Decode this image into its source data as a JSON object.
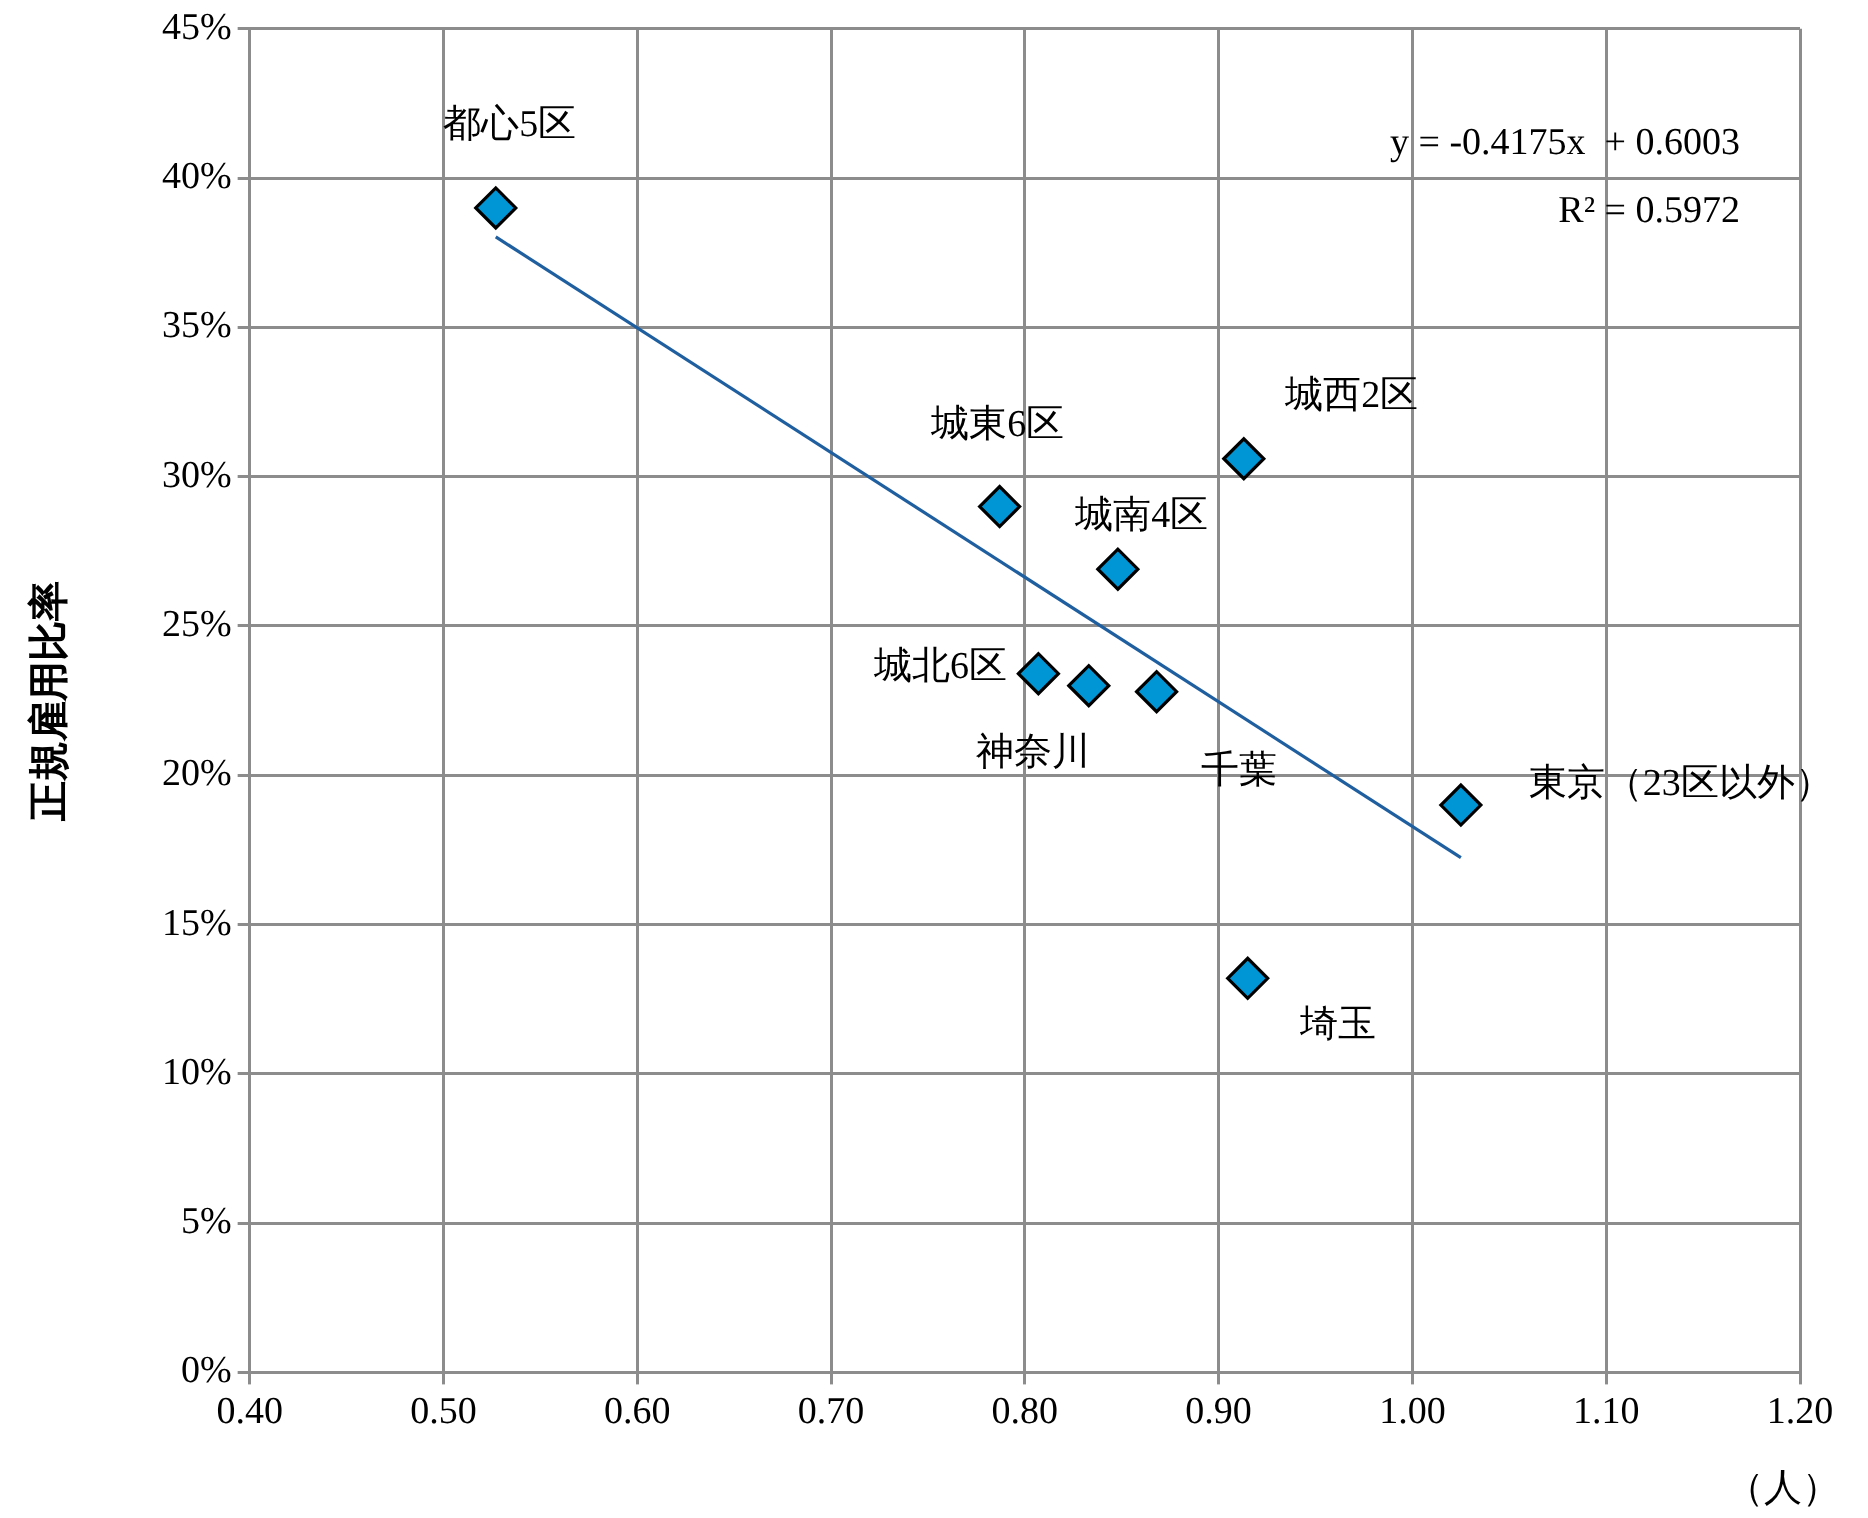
{
  "chart_data": {
    "type": "scatter",
    "ylabel": "正規雇用比率",
    "xlabel": "（人）",
    "xlim": [
      0.4,
      1.2
    ],
    "xticks": [
      {
        "value": 0.4,
        "label": "0.40"
      },
      {
        "value": 0.5,
        "label": "0.50"
      },
      {
        "value": 0.6,
        "label": "0.60"
      },
      {
        "value": 0.7,
        "label": "0.70"
      },
      {
        "value": 0.8,
        "label": "0.80"
      },
      {
        "value": 0.9,
        "label": "0.90"
      },
      {
        "value": 1.0,
        "label": "1.00"
      },
      {
        "value": 1.1,
        "label": "1.10"
      },
      {
        "value": 1.2,
        "label": "1.20"
      }
    ],
    "ylim": [
      0,
      45
    ],
    "yticks": [
      {
        "value": 0,
        "label": "0%"
      },
      {
        "value": 5,
        "label": "5%"
      },
      {
        "value": 10,
        "label": "10%"
      },
      {
        "value": 15,
        "label": "15%"
      },
      {
        "value": 20,
        "label": "20%"
      },
      {
        "value": 25,
        "label": "25%"
      },
      {
        "value": 30,
        "label": "30%"
      },
      {
        "value": 35,
        "label": "35%"
      },
      {
        "value": 40,
        "label": "40%"
      },
      {
        "value": 45,
        "label": "45%"
      }
    ],
    "grid": true,
    "legend": false,
    "marker": "diamond",
    "series": [
      {
        "type": "scatter",
        "color": "#0096d6",
        "x": [
          0.527,
          0.787,
          0.848,
          0.913,
          0.807,
          0.833,
          0.868,
          1.025,
          0.915
        ],
        "values": [
          39.0,
          29.0,
          26.9,
          30.6,
          23.4,
          23.0,
          22.8,
          19.0,
          13.2
        ]
      },
      {
        "type": "line",
        "color": "#1f5fa0",
        "marker": "none",
        "x": [
          0.527,
          1.025
        ],
        "values": [
          38.03,
          17.24
        ]
      }
    ],
    "annotations": [
      {
        "text": "都心5区",
        "x": 0.527,
        "y": 39.0
      },
      {
        "text": "城東6区",
        "x": 0.787,
        "y": 29.0
      },
      {
        "text": "城南4区",
        "x": 0.848,
        "y": 26.9
      },
      {
        "text": "城西2区",
        "x": 0.913,
        "y": 30.6
      },
      {
        "text": "城北6区",
        "x": 0.807,
        "y": 23.4
      },
      {
        "text": "神奈川",
        "x": 0.833,
        "y": 23.0
      },
      {
        "text": "千葉",
        "x": 0.868,
        "y": 22.8
      },
      {
        "text": "東京（23区以外）",
        "x": 1.025,
        "y": 19.0
      },
      {
        "text": "埼玉",
        "x": 0.915,
        "y": 13.2
      },
      "y = -0.4175x  + 0.6003",
      "R² = 0.5972"
    ]
  }
}
